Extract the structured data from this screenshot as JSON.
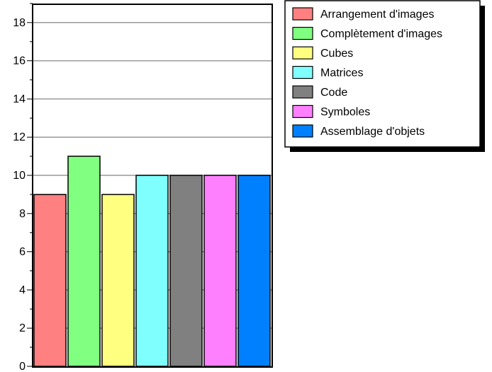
{
  "chart_data": {
    "type": "bar",
    "title": "",
    "xlabel": "",
    "ylabel": "",
    "ylim": [
      0,
      19
    ],
    "yticks": [
      0,
      2,
      4,
      6,
      8,
      10,
      12,
      14,
      16,
      18
    ],
    "grid": true,
    "legend_position": "top-right",
    "series": [
      {
        "name": "Arrangement d'images",
        "value": 9,
        "color": "#ff8080"
      },
      {
        "name": "Complètement d'images",
        "value": 11,
        "color": "#80ff80"
      },
      {
        "name": "Cubes",
        "value": 9,
        "color": "#ffff80"
      },
      {
        "name": "Matrices",
        "value": 10,
        "color": "#80ffff"
      },
      {
        "name": "Code",
        "value": 10,
        "color": "#808080"
      },
      {
        "name": "Symboles",
        "value": 10,
        "color": "#ff80ff"
      },
      {
        "name": "Assemblage d'objets",
        "value": 10,
        "color": "#0080ff"
      }
    ]
  }
}
